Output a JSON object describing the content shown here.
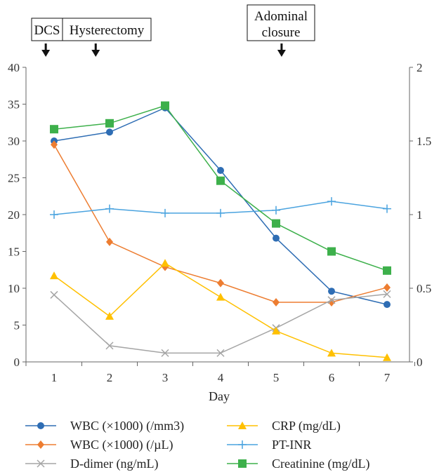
{
  "chart_data": {
    "type": "line",
    "xlabel": "Day",
    "categories": [
      "1",
      "2",
      "3",
      "4",
      "5",
      "6",
      "7"
    ],
    "y_left": {
      "ticks": [
        "0",
        "5",
        "10",
        "15",
        "20",
        "25",
        "30",
        "35",
        "40"
      ],
      "ylim": [
        0,
        40
      ]
    },
    "y_right": {
      "ticks": [
        "0",
        "0.5",
        "1",
        "1.5",
        "2"
      ],
      "ylim": [
        0,
        2
      ]
    },
    "grid": false,
    "legend_position": "bottom",
    "series": [
      {
        "name": "WBC (×1000) (/mm3)",
        "axis": "left",
        "color": "#2e6db4",
        "marker": "circle",
        "values": [
          30,
          31.2,
          34.5,
          26,
          16.8,
          9.6,
          7.8
        ]
      },
      {
        "name": "WBC (×1000) (/µL)",
        "axis": "left",
        "color": "#ed7d31",
        "marker": "diamond",
        "values": [
          29.5,
          16.3,
          12.9,
          10.7,
          8.1,
          8.1,
          10.1
        ]
      },
      {
        "name": "D-dimer (ng/mL)",
        "axis": "left",
        "color": "#a5a5a5",
        "marker": "x",
        "values": [
          9.1,
          2.2,
          1.2,
          1.2,
          4.6,
          8.4,
          9.2
        ]
      },
      {
        "name": "CRP (mg/dL)",
        "axis": "left",
        "color": "#ffc000",
        "marker": "triangle",
        "values": [
          11.7,
          6.2,
          13.4,
          8.8,
          4.2,
          1.2,
          0.6
        ]
      },
      {
        "name": "PT-INR",
        "axis": "right",
        "color": "#4aa3df",
        "marker": "plus",
        "values": [
          1.0,
          1.04,
          1.01,
          1.01,
          1.03,
          1.09,
          1.04
        ]
      },
      {
        "name": "Creatinine (mg/dL)",
        "axis": "right",
        "color": "#3db04b",
        "marker": "square",
        "values": [
          1.58,
          1.62,
          1.74,
          1.23,
          0.94,
          0.75,
          0.62
        ]
      }
    ],
    "annotations": [
      {
        "text": "DCS",
        "day": 0.85
      },
      {
        "text": "Hysterectomy",
        "day": 1.75
      },
      {
        "lines": [
          "Adominal",
          "closure"
        ],
        "day": 5.1
      }
    ]
  }
}
